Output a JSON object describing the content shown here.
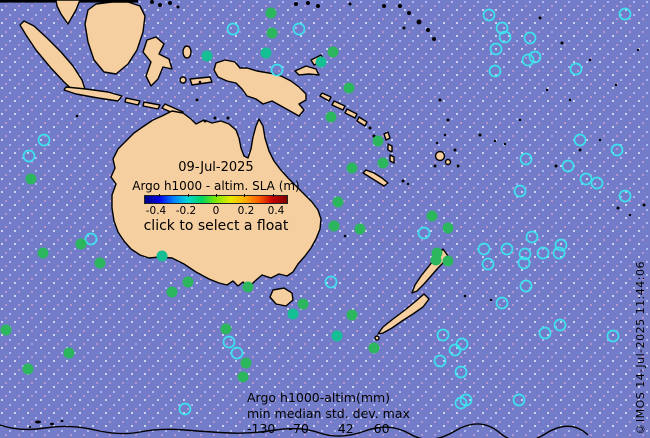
{
  "overlay": {
    "date": "09-Jul-2025",
    "title": "Argo h1000 - altim. SLA (m)",
    "hint": "click to select a float",
    "colorbar_ticks": [
      "-0.4",
      "-0.2",
      "0",
      "0.2",
      "0.4"
    ]
  },
  "stats": {
    "title": "Argo h1000-altim(mm)",
    "header": "min median std. dev. max",
    "min": "-130",
    "median": "-70",
    "std_dev": "42",
    "max": "60"
  },
  "watermark": "©IMOS 14-Jul-2025 11:44:06",
  "colors": {
    "ocean": "#737CC9",
    "land": "#F6CFA0",
    "coast": "#000000",
    "float_active": "#2CB75F",
    "float_active_teal": "#16BE93",
    "float_inactive_ring": "#3EE2EE",
    "colorbar": [
      "#00007F",
      "#0000E8",
      "#0080FF",
      "#00D5D5",
      "#00D560",
      "#7FE800",
      "#E8E800",
      "#FFB000",
      "#FF5E00",
      "#C40000",
      "#7F0000"
    ]
  },
  "floats": {
    "active": [
      [
        271,
        13
      ],
      [
        272,
        33
      ],
      [
        266,
        53,
        "t"
      ],
      [
        333,
        52
      ],
      [
        321,
        62,
        "t"
      ],
      [
        349,
        88
      ],
      [
        331,
        117
      ],
      [
        378,
        141
      ],
      [
        207,
        56,
        "t"
      ],
      [
        31,
        179
      ],
      [
        43,
        253
      ],
      [
        81,
        244
      ],
      [
        100,
        263
      ],
      [
        162,
        256,
        "t"
      ],
      [
        188,
        282
      ],
      [
        352,
        168
      ],
      [
        383,
        163
      ],
      [
        338,
        202
      ],
      [
        334,
        226
      ],
      [
        360,
        229
      ],
      [
        432,
        216
      ],
      [
        248,
        287
      ],
      [
        6,
        330
      ],
      [
        69,
        353
      ],
      [
        28,
        369
      ],
      [
        172,
        292
      ],
      [
        303,
        304
      ],
      [
        293,
        314,
        "t"
      ],
      [
        352,
        315
      ],
      [
        226,
        329
      ],
      [
        246,
        363
      ],
      [
        243,
        377
      ],
      [
        337,
        336,
        "t"
      ],
      [
        374,
        348
      ],
      [
        448,
        228
      ],
      [
        437,
        253
      ],
      [
        436,
        260
      ],
      [
        448,
        261
      ]
    ],
    "inactive": [
      [
        44,
        140
      ],
      [
        29,
        156
      ],
      [
        91,
        239
      ],
      [
        233,
        29
      ],
      [
        299,
        29
      ],
      [
        277,
        70
      ],
      [
        489,
        15
      ],
      [
        502,
        28
      ],
      [
        505,
        37
      ],
      [
        530,
        38
      ],
      [
        496,
        49
      ],
      [
        528,
        60
      ],
      [
        535,
        57
      ],
      [
        495,
        71
      ],
      [
        576,
        69
      ],
      [
        625,
        14
      ],
      [
        580,
        140
      ],
      [
        526,
        159
      ],
      [
        568,
        166
      ],
      [
        586,
        179
      ],
      [
        597,
        183
      ],
      [
        617,
        150
      ],
      [
        625,
        196
      ],
      [
        520,
        191
      ],
      [
        424,
        233
      ],
      [
        331,
        282
      ],
      [
        484,
        249
      ],
      [
        507,
        249
      ],
      [
        525,
        254
      ],
      [
        524,
        263
      ],
      [
        543,
        253
      ],
      [
        559,
        253
      ],
      [
        561,
        245
      ],
      [
        488,
        264
      ],
      [
        532,
        237
      ],
      [
        526,
        286
      ],
      [
        185,
        409
      ],
      [
        229,
        342
      ],
      [
        237,
        353
      ],
      [
        502,
        303
      ],
      [
        443,
        335
      ],
      [
        462,
        344
      ],
      [
        455,
        350
      ],
      [
        440,
        361
      ],
      [
        461,
        372
      ],
      [
        545,
        333
      ],
      [
        560,
        325
      ],
      [
        613,
        336
      ],
      [
        466,
        400
      ],
      [
        461,
        403
      ],
      [
        519,
        400
      ]
    ]
  }
}
